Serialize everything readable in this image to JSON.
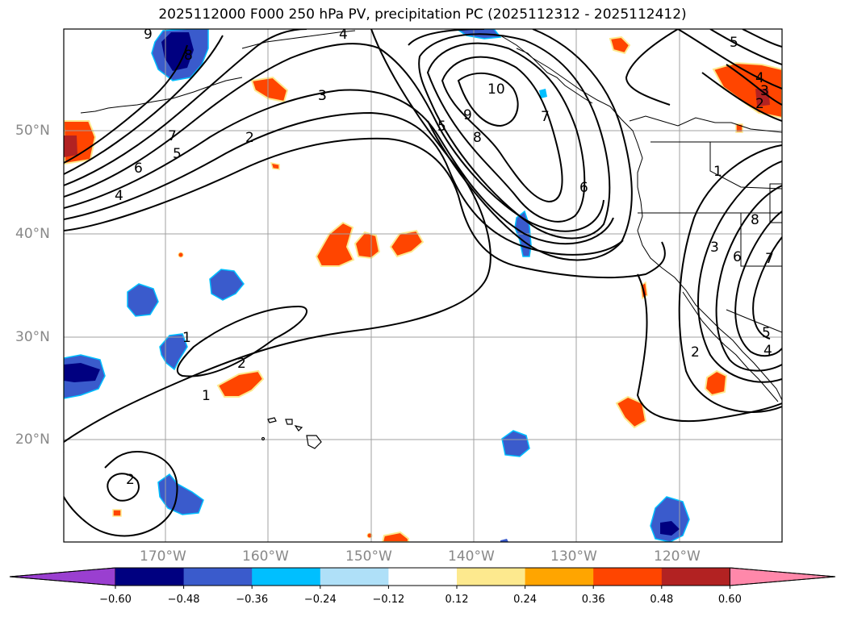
{
  "title": "2025112000 F000 250 hPa PV, precipitation PC (2025112312 - 2025112412)",
  "latitude_labels": [
    "50°N",
    "40°N",
    "30°N",
    "20°N"
  ],
  "longitude_labels": [
    "170°W",
    "160°W",
    "150°W",
    "140°W",
    "130°W",
    "120°W"
  ],
  "colorbar": {
    "ticks": [
      "−0.60",
      "−0.48",
      "−0.36",
      "−0.24",
      "−0.12",
      "0.12",
      "0.24",
      "0.36",
      "0.48",
      "0.60"
    ],
    "colors": [
      "#9a3fd0",
      "#000080",
      "#3a5bcc",
      "#00bfff",
      "#afe0f8",
      "#ffffff",
      "#fde98e",
      "#ffa500",
      "#ff4500",
      "#b22222",
      "#ff88aa"
    ]
  },
  "contour_labels": [
    "9",
    "8",
    "4",
    "3",
    "7",
    "5",
    "6",
    "4",
    "2",
    "3",
    "10",
    "5",
    "9",
    "8",
    "7",
    "6",
    "5",
    "4",
    "3",
    "2",
    "1",
    "3",
    "6",
    "7",
    "8",
    "2",
    "5",
    "4",
    "1",
    "2",
    "1",
    "2"
  ],
  "colors": {
    "contour": "#000000",
    "grid": "#a0a0a0",
    "coast": "#000000",
    "label": "#888888"
  }
}
